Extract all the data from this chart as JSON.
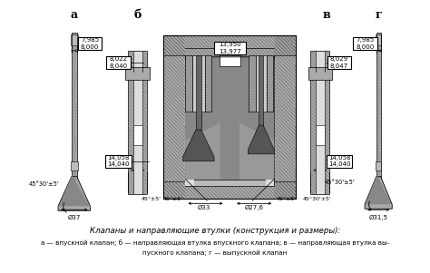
{
  "title_main": "Клапаны и направляющие втулки (конструкция и размеры):",
  "title_sub1": "а — впускной клапан; б — направляющая втулка впускного клапана; в — направляющая втулка вы-",
  "title_sub2": "пускного клапана; г — выпускной клапан",
  "bg_color": "#ffffff",
  "labels": [
    "а",
    "б",
    "в",
    "г"
  ],
  "box_a": "7,985\n8,000",
  "box_b_top": "8,022\n8,040",
  "box_center": "13,950\n13,977",
  "box_v_top": "8,029\n8,047",
  "box_g": "7,985\n8,000",
  "box_b_bot": "14,058\n14,040",
  "box_v_bot": "14,058\n14,040",
  "dim_a_angle": "45°30'±5'",
  "dim_b_angle": "45°±5'",
  "dim_v_angle": "45°30'±5'",
  "dim_d37": "Ø37",
  "dim_d31": "Ø31,5",
  "dim_d33": "Ø33",
  "dim_d27": "Ø27,6",
  "text_color": "#000000",
  "line_color": "#000000",
  "box_bg": "#ffffff",
  "hatch_color": "#555555",
  "gray_light": "#cccccc",
  "gray_med": "#999999",
  "gray_dark": "#666666",
  "gray_xdark": "#444444"
}
